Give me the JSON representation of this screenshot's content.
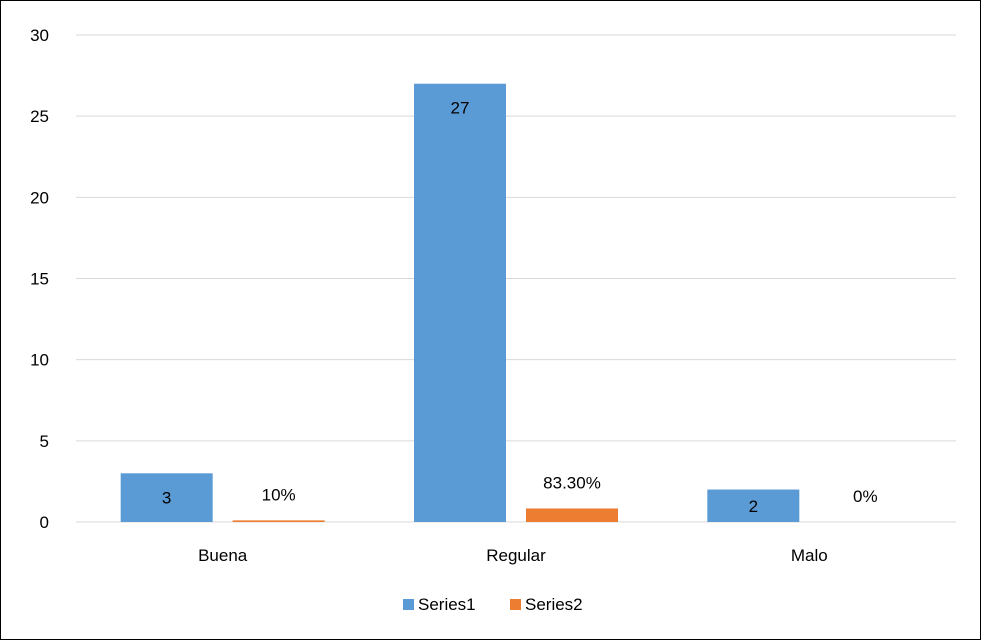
{
  "chart_data": {
    "type": "bar",
    "categories": [
      "Buena",
      "Regular",
      "Malo"
    ],
    "series": [
      {
        "name": "Series1",
        "values": [
          3,
          27,
          2
        ],
        "labels": [
          "3",
          "27",
          "2"
        ],
        "color": "#5B9BD5"
      },
      {
        "name": "Series2",
        "values": [
          0.1,
          0.833,
          0
        ],
        "labels": [
          "10%",
          "83.30%",
          "0%"
        ],
        "color": "#ED7D31"
      }
    ],
    "ylim": [
      0,
      30
    ],
    "yticks": [
      "0",
      "5",
      "10",
      "15",
      "20",
      "25",
      "30"
    ],
    "grid": true,
    "legend": "bottom",
    "gridColor": "#D9D9D9"
  }
}
